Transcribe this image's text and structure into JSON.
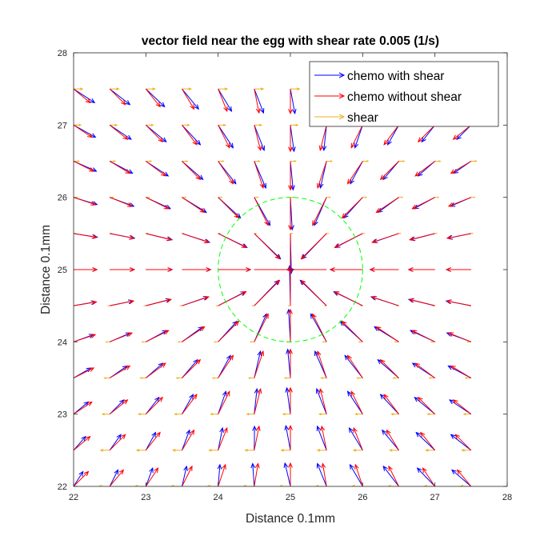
{
  "chart_data": {
    "type": "quiver",
    "title": "vector field near the egg with shear rate 0.005 (1/s)",
    "xlabel": "Distance 0.1mm",
    "ylabel": "Distance 0.1mm",
    "xlim": [
      22,
      28
    ],
    "ylim": [
      22,
      28
    ],
    "xticks": [
      22,
      23,
      24,
      25,
      26,
      27,
      28
    ],
    "yticks": [
      22,
      23,
      24,
      25,
      26,
      27,
      28
    ],
    "grid": false,
    "legend_position": "top-right",
    "grid_points": {
      "x": [
        22,
        22.5,
        23,
        23.5,
        24,
        24.5,
        25,
        25.5,
        26,
        26.5,
        27,
        27.5
      ],
      "y": [
        22,
        22.5,
        23,
        23.5,
        24,
        24.5,
        25,
        25.5,
        26,
        26.5,
        27,
        27.5
      ]
    },
    "center": [
      25,
      25
    ],
    "egg_radius": 1,
    "shear_rate": 0.005,
    "series": [
      {
        "name": "chemo with shear",
        "color": "#0000ff",
        "field": "radial inward toward (25, 25), magnitude ~0.55 at r=0.5, decaying with distance, plus shear",
        "shear_offset_scale": 0.05
      },
      {
        "name": "chemo without shear",
        "color": "#ff0000",
        "field": "radial inward toward (25, 25), magnitude ~0.55 at r=0.5, decaying with distance"
      },
      {
        "name": "shear",
        "color": "#edb120",
        "field": "horizontal, proportional to (y - 25), scaled by 0.005"
      }
    ],
    "annotations": [
      {
        "type": "circle",
        "center": [
          25,
          25
        ],
        "radius": 1,
        "color": "#00ff00",
        "style": "dashed"
      }
    ]
  }
}
